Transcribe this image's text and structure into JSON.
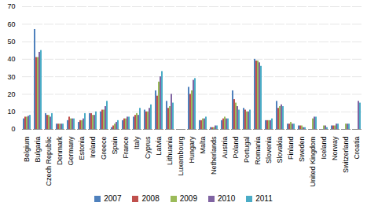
{
  "chart_data": {
    "type": "bar",
    "categories": [
      "Belgium",
      "Bulgaria",
      "Czech Republic",
      "Denmark",
      "Germany",
      "Estonia",
      "Ireland",
      "Greece",
      "Spain",
      "France",
      "Italy",
      "Cyprus",
      "Latvia",
      "Lithuania",
      "Luxembourg",
      "Hungary",
      "Malta",
      "Netherlands",
      "Austria",
      "Poland",
      "Portugal",
      "Romania",
      "Slovenia",
      "Slovakia",
      "Finland",
      "Sweden",
      "United Kingdom",
      "Iceland",
      "Norway",
      "Switzerland",
      "Croatia"
    ],
    "series": [
      {
        "name": "2007",
        "color": "#4f81bd",
        "values": [
          6,
          57,
          9,
          3,
          5,
          4,
          9,
          10,
          1,
          5,
          7,
          11,
          22,
          16,
          null,
          24,
          5,
          1,
          5,
          22,
          12,
          40,
          5,
          16,
          3,
          2,
          null,
          null,
          2,
          null,
          null
        ]
      },
      {
        "name": "2008",
        "color": "#c0504d",
        "values": [
          7,
          41,
          8,
          3,
          7,
          5,
          9,
          11,
          2,
          6,
          8,
          10,
          19,
          12,
          null,
          20,
          5,
          1,
          6,
          17,
          11,
          39,
          5,
          12,
          3,
          2,
          null,
          null,
          2,
          null,
          null
        ]
      },
      {
        "name": "2009",
        "color": "#9bbb59",
        "values": [
          7,
          41,
          8,
          3,
          6,
          5,
          8,
          11,
          3,
          6,
          9,
          10,
          27,
          13,
          null,
          22,
          6,
          1,
          7,
          15,
          10,
          39,
          5,
          13,
          4,
          2,
          6,
          2,
          2,
          3,
          null
        ]
      },
      {
        "name": "2010",
        "color": "#8064a2",
        "values": [
          7.5,
          44,
          7,
          3,
          6,
          6,
          8,
          13,
          4,
          7,
          8,
          12,
          30,
          20,
          null,
          28,
          6,
          2,
          6,
          13,
          10,
          38,
          5,
          14,
          3,
          1,
          7,
          2,
          3,
          3,
          16
        ]
      },
      {
        "name": "2011",
        "color": "#4bacc6",
        "values": [
          8,
          45,
          9,
          3,
          6,
          9,
          10,
          16,
          5,
          7,
          12,
          14,
          33,
          15,
          null,
          29,
          7,
          2,
          6,
          11,
          11,
          36,
          6,
          13,
          3,
          1,
          7,
          1,
          3,
          3,
          15
        ]
      }
    ],
    "ylim": [
      0,
      70
    ],
    "yticks": [
      0,
      10,
      20,
      30,
      40,
      50,
      60,
      70
    ],
    "grid": true,
    "legend": "bottom"
  }
}
